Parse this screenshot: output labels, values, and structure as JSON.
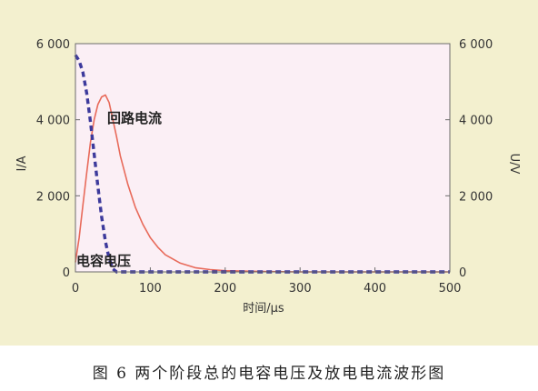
{
  "caption": "图 6   两个阶段总的电容电压及放电电流波形图",
  "chart_data": {
    "type": "line",
    "xlabel": "时间/μs",
    "ylabel_left": "I/A",
    "ylabel_right": "U/V",
    "xlim": [
      0,
      500
    ],
    "ylim_left": [
      0,
      6000
    ],
    "ylim_right": [
      0,
      6000
    ],
    "x_ticks": [
      "0",
      "100",
      "200",
      "300",
      "400",
      "500"
    ],
    "y_ticks_left": [
      "0",
      "2 000",
      "4 000",
      "6 000"
    ],
    "y_ticks_right": [
      "0",
      "2 000",
      "4 000",
      "6 000"
    ],
    "grid": false,
    "background_color": "#f3f0cf",
    "plot_color": "#fbeff5",
    "series": [
      {
        "name": "回路电流",
        "axis": "left",
        "style": "solid",
        "color": "#e86a5a",
        "x": [
          0,
          5,
          10,
          15,
          20,
          25,
          30,
          35,
          40,
          45,
          50,
          55,
          60,
          70,
          80,
          90,
          100,
          110,
          120,
          140,
          160,
          180,
          200,
          250,
          300,
          400,
          500
        ],
        "y": [
          250,
          900,
          1750,
          2600,
          3400,
          4000,
          4400,
          4600,
          4650,
          4450,
          4000,
          3550,
          3050,
          2300,
          1700,
          1250,
          900,
          650,
          450,
          230,
          110,
          60,
          30,
          10,
          0,
          0,
          0
        ]
      },
      {
        "name": "电容电压",
        "axis": "right",
        "style": "dashed",
        "color": "#3d3a9c",
        "x": [
          0,
          5,
          10,
          15,
          20,
          25,
          30,
          35,
          40,
          45,
          50,
          55,
          60,
          100,
          200,
          300,
          400,
          500
        ],
        "y": [
          5700,
          5550,
          5250,
          4700,
          3950,
          3100,
          2250,
          1450,
          800,
          350,
          80,
          0,
          0,
          0,
          0,
          0,
          0,
          0
        ]
      }
    ]
  }
}
